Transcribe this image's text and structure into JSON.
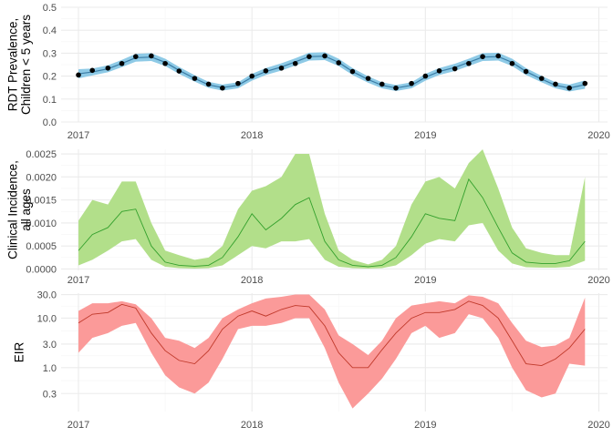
{
  "colors": {
    "panel_bg": "#ffffff",
    "grid_major": "#ebebeb",
    "grid_minor": "#f5f5f5",
    "prevalence_band": "#8ecae6",
    "prevalence_line": "#3a7ca5",
    "prevalence_points": "#000000",
    "incidence_band": "#b2df8a",
    "incidence_line": "#33a02c",
    "eir_band": "#fb9a99",
    "eir_line": "#c0392b"
  },
  "chart_data": [
    {
      "type": "line",
      "ylabel_lines": [
        "RDT Prevalence,",
        "Children < 5 years"
      ],
      "xlim": [
        2016.9,
        2020.05
      ],
      "ylim": [
        0,
        0.5
      ],
      "x_ticks": [
        2017,
        2018,
        2019,
        2020
      ],
      "x_tick_labels": [
        "2017",
        "2018",
        "2019",
        "2020"
      ],
      "y_ticks": [
        0,
        0.1,
        0.2,
        0.3,
        0.4,
        0.5
      ],
      "y_tick_labels": [
        "0.0",
        "0.1",
        "0.2",
        "0.3",
        "0.4",
        "0.5"
      ],
      "grid": true,
      "band_x": [
        2017.0,
        2017.08,
        2017.17,
        2017.25,
        2017.33,
        2017.42,
        2017.5,
        2017.58,
        2017.67,
        2017.75,
        2017.83,
        2017.92,
        2018.0,
        2018.08,
        2018.17,
        2018.25,
        2018.33,
        2018.42,
        2018.5,
        2018.58,
        2018.67,
        2018.75,
        2018.83,
        2018.92,
        2019.0,
        2019.08,
        2019.17,
        2019.25,
        2019.33,
        2019.42,
        2019.5,
        2019.58,
        2019.67,
        2019.75,
        2019.83,
        2019.92
      ],
      "band_mid": [
        0.21,
        0.218,
        0.232,
        0.255,
        0.28,
        0.283,
        0.26,
        0.225,
        0.19,
        0.162,
        0.15,
        0.16,
        0.195,
        0.22,
        0.24,
        0.262,
        0.285,
        0.287,
        0.26,
        0.22,
        0.185,
        0.16,
        0.148,
        0.16,
        0.195,
        0.22,
        0.238,
        0.26,
        0.283,
        0.285,
        0.26,
        0.22,
        0.187,
        0.16,
        0.148,
        0.163
      ],
      "band_half": [
        0.02,
        0.015,
        0.015,
        0.016,
        0.017,
        0.017,
        0.016,
        0.015,
        0.014,
        0.013,
        0.013,
        0.013,
        0.015,
        0.015,
        0.016,
        0.016,
        0.017,
        0.017,
        0.016,
        0.015,
        0.014,
        0.013,
        0.013,
        0.013,
        0.015,
        0.015,
        0.016,
        0.016,
        0.017,
        0.017,
        0.016,
        0.015,
        0.014,
        0.013,
        0.015,
        0.018
      ],
      "points_x": [
        2017.0,
        2017.08,
        2017.17,
        2017.25,
        2017.33,
        2017.42,
        2017.5,
        2017.58,
        2017.67,
        2017.75,
        2017.83,
        2017.92,
        2018.0,
        2018.08,
        2018.17,
        2018.25,
        2018.33,
        2018.42,
        2018.5,
        2018.58,
        2018.67,
        2018.75,
        2018.83,
        2018.92,
        2019.0,
        2019.08,
        2019.17,
        2019.25,
        2019.33,
        2019.42,
        2019.5,
        2019.58,
        2019.67,
        2019.75,
        2019.83,
        2019.92
      ],
      "points_y": [
        0.205,
        0.225,
        0.235,
        0.255,
        0.285,
        0.288,
        0.255,
        0.222,
        0.19,
        0.165,
        0.148,
        0.168,
        0.2,
        0.223,
        0.235,
        0.255,
        0.285,
        0.288,
        0.258,
        0.22,
        0.19,
        0.165,
        0.148,
        0.168,
        0.2,
        0.223,
        0.232,
        0.255,
        0.285,
        0.288,
        0.255,
        0.22,
        0.19,
        0.165,
        0.148,
        0.168
      ]
    },
    {
      "type": "area",
      "ylabel_lines": [
        "Clinical Incidence,",
        "all ages"
      ],
      "xlim": [
        2016.9,
        2020.05
      ],
      "ylim": [
        -3e-05,
        0.0026
      ],
      "x_ticks": [
        2017,
        2018,
        2019,
        2020
      ],
      "x_tick_labels": [
        "2017",
        "2018",
        "2019",
        "2020"
      ],
      "y_ticks": [
        0,
        0.0005,
        0.001,
        0.0015,
        0.002,
        0.0025
      ],
      "y_tick_labels": [
        "0.0000",
        "0.0005",
        "0.0010",
        "0.0015",
        "0.0020",
        "0.0025"
      ],
      "grid": true,
      "x": [
        2017.0,
        2017.08,
        2017.17,
        2017.25,
        2017.33,
        2017.42,
        2017.5,
        2017.58,
        2017.67,
        2017.75,
        2017.83,
        2017.92,
        2018.0,
        2018.08,
        2018.17,
        2018.25,
        2018.33,
        2018.42,
        2018.5,
        2018.58,
        2018.67,
        2018.75,
        2018.83,
        2018.92,
        2019.0,
        2019.08,
        2019.17,
        2019.25,
        2019.33,
        2019.42,
        2019.5,
        2019.58,
        2019.67,
        2019.75,
        2019.83,
        2019.92
      ],
      "mid": [
        0.0004,
        0.00075,
        0.0009,
        0.00125,
        0.0013,
        0.0005,
        0.00015,
        8e-05,
        6e-05,
        8e-05,
        0.00025,
        0.0007,
        0.0012,
        0.00085,
        0.0011,
        0.0014,
        0.00155,
        0.0006,
        0.0002,
        8e-05,
        5e-05,
        8e-05,
        0.00025,
        0.0007,
        0.0012,
        0.0011,
        0.00105,
        0.00195,
        0.00155,
        0.0009,
        0.00035,
        0.00015,
        0.00012,
        0.00012,
        0.00018,
        0.0006
      ],
      "low": [
        8e-05,
        0.0002,
        0.0004,
        0.0006,
        0.00065,
        0.0002,
        5e-05,
        2e-05,
        1e-05,
        2e-05,
        8e-05,
        0.0003,
        0.0005,
        0.00045,
        0.0006,
        0.0006,
        0.00065,
        0.0002,
        5e-05,
        2e-05,
        1e-05,
        2e-05,
        8e-05,
        0.0003,
        0.00055,
        0.00065,
        0.0006,
        0.00095,
        0.001,
        0.0004,
        0.00012,
        4e-05,
        3e-05,
        3e-05,
        5e-05,
        0.00018
      ],
      "high": [
        0.00105,
        0.0015,
        0.0014,
        0.0019,
        0.0019,
        0.001,
        0.0004,
        0.0003,
        0.0002,
        0.00025,
        0.0005,
        0.0013,
        0.0017,
        0.0018,
        0.002,
        0.0025,
        0.0025,
        0.0012,
        0.0004,
        0.0002,
        0.0001,
        0.0002,
        0.0005,
        0.0014,
        0.0019,
        0.002,
        0.00175,
        0.0023,
        0.0026,
        0.00175,
        0.0009,
        0.00045,
        0.00035,
        0.0003,
        0.0003,
        0.002
      ]
    },
    {
      "type": "area",
      "ylabel_lines": [
        "EIR"
      ],
      "log_scale": true,
      "xlim": [
        2016.9,
        2020.05
      ],
      "ylim": [
        0.13,
        32
      ],
      "x_ticks": [
        2017,
        2018,
        2019,
        2020
      ],
      "x_tick_labels": [
        "2017",
        "2018",
        "2019",
        "2020"
      ],
      "y_ticks": [
        0.3,
        1.0,
        3.0,
        10.0,
        30.0
      ],
      "y_tick_labels": [
        "0.3",
        "1.0",
        "3.0",
        "10.0",
        "30.0"
      ],
      "grid": true,
      "x": [
        2017.0,
        2017.08,
        2017.17,
        2017.25,
        2017.33,
        2017.42,
        2017.5,
        2017.58,
        2017.67,
        2017.75,
        2017.83,
        2017.92,
        2018.0,
        2018.08,
        2018.17,
        2018.25,
        2018.33,
        2018.42,
        2018.5,
        2018.58,
        2018.67,
        2018.75,
        2018.83,
        2018.92,
        2019.0,
        2019.08,
        2019.17,
        2019.25,
        2019.33,
        2019.42,
        2019.5,
        2019.58,
        2019.67,
        2019.75,
        2019.83,
        2019.92
      ],
      "mid": [
        8,
        12,
        13,
        19,
        16,
        5,
        2.2,
        1.4,
        1.2,
        2.2,
        6,
        11,
        14,
        11,
        15,
        18,
        17,
        7,
        2,
        1,
        1,
        2.3,
        5,
        10,
        13,
        13,
        15,
        22,
        18,
        10,
        3.5,
        1.2,
        1.1,
        1.5,
        2.5,
        6
      ],
      "low": [
        2,
        4,
        5,
        7,
        8,
        2,
        0.7,
        0.4,
        0.3,
        0.5,
        1.5,
        6,
        7,
        7,
        8,
        10,
        10,
        2.5,
        0.5,
        0.15,
        0.3,
        0.6,
        1.5,
        5,
        7,
        4,
        5,
        12,
        10,
        4,
        1,
        0.35,
        0.25,
        0.3,
        1.2,
        1.1
      ],
      "high": [
        14,
        20,
        20,
        22,
        19,
        10,
        4,
        3.5,
        2.5,
        4,
        10,
        15,
        20,
        25,
        27,
        30,
        30,
        15,
        4.5,
        3,
        1.8,
        3.5,
        10,
        18,
        20,
        22,
        20,
        29,
        27,
        20,
        8,
        3.5,
        2.6,
        2.8,
        4,
        26
      ]
    }
  ]
}
